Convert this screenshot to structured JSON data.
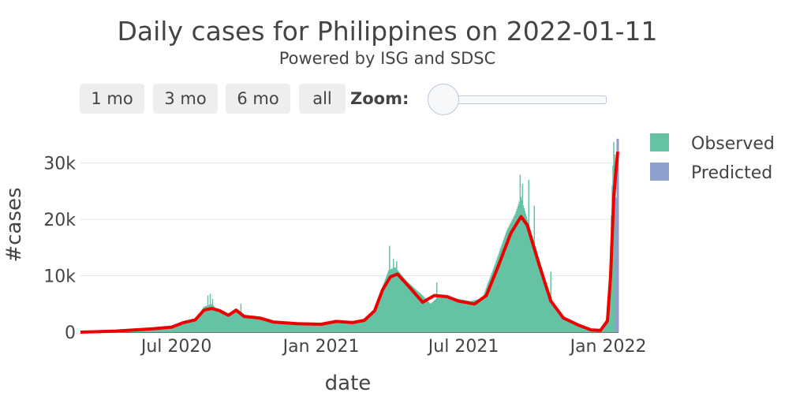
{
  "header": {
    "title": "Daily cases for Philippines on 2022-01-11",
    "subtitle": "Powered by ISG and SDSC"
  },
  "controls": {
    "buttons": [
      "1 mo",
      "3 mo",
      "6 mo",
      "all"
    ],
    "zoom_label": "Zoom:",
    "zoom_value": 0
  },
  "chart_data": {
    "type": "bar",
    "xlabel": "date",
    "ylabel": "#cases",
    "xlim": [
      "2020-03-01",
      "2022-01-14"
    ],
    "ylim": [
      0,
      34000
    ],
    "yticks": [
      0,
      10000,
      20000,
      30000
    ],
    "ytick_labels": [
      "0",
      "10k",
      "20k",
      "30k"
    ],
    "xticks": [
      "2020-07-01",
      "2021-01-01",
      "2021-07-01",
      "2022-01-01"
    ],
    "xtick_labels": [
      "Jul 2020",
      "Jan 2021",
      "Jul 2021",
      "Jan 2022"
    ],
    "grid": true,
    "legend": {
      "placement": "top-right",
      "entries": [
        "Observed",
        "Predicted"
      ]
    },
    "colors": {
      "observed": "#66c2a5",
      "predicted": "#8da0cb",
      "smooth": "#ee0000"
    },
    "observed_knots": [
      [
        "2020-03-01",
        0
      ],
      [
        "2020-03-20",
        100
      ],
      [
        "2020-04-10",
        250
      ],
      [
        "2020-05-01",
        300
      ],
      [
        "2020-06-01",
        500
      ],
      [
        "2020-06-20",
        700
      ],
      [
        "2020-07-05",
        1500
      ],
      [
        "2020-07-25",
        2000
      ],
      [
        "2020-08-05",
        4500
      ],
      [
        "2020-08-15",
        5000
      ],
      [
        "2020-08-25",
        3500
      ],
      [
        "2020-09-05",
        2800
      ],
      [
        "2020-09-15",
        4000
      ],
      [
        "2020-09-25",
        3000
      ],
      [
        "2020-10-15",
        2500
      ],
      [
        "2020-11-01",
        1800
      ],
      [
        "2020-11-20",
        1500
      ],
      [
        "2020-12-15",
        1400
      ],
      [
        "2021-01-05",
        1500
      ],
      [
        "2021-01-20",
        2000
      ],
      [
        "2021-02-10",
        1800
      ],
      [
        "2021-02-25",
        2200
      ],
      [
        "2021-03-10",
        4000
      ],
      [
        "2021-03-20",
        8000
      ],
      [
        "2021-03-28",
        11000
      ],
      [
        "2021-04-05",
        11500
      ],
      [
        "2021-04-20",
        9000
      ],
      [
        "2021-05-10",
        6500
      ],
      [
        "2021-05-20",
        5000
      ],
      [
        "2021-06-01",
        6500
      ],
      [
        "2021-06-20",
        6000
      ],
      [
        "2021-07-10",
        5500
      ],
      [
        "2021-07-25",
        6000
      ],
      [
        "2021-08-10",
        12000
      ],
      [
        "2021-08-25",
        18000
      ],
      [
        "2021-09-05",
        21000
      ],
      [
        "2021-09-12",
        24000
      ],
      [
        "2021-09-20",
        20000
      ],
      [
        "2021-10-05",
        13000
      ],
      [
        "2021-10-20",
        6000
      ],
      [
        "2021-11-05",
        2500
      ],
      [
        "2021-11-25",
        1000
      ],
      [
        "2021-12-10",
        500
      ],
      [
        "2021-12-25",
        300
      ],
      [
        "2021-12-31",
        3000
      ],
      [
        "2022-01-03",
        10000
      ],
      [
        "2022-01-06",
        26000
      ],
      [
        "2022-01-08",
        33000
      ],
      [
        "2022-01-10",
        30000
      ]
    ],
    "spikes": [
      [
        "2020-08-10",
        6500
      ],
      [
        "2020-08-13",
        6800
      ],
      [
        "2020-08-16",
        5900
      ],
      [
        "2020-09-21",
        5000
      ],
      [
        "2021-03-29",
        15300
      ],
      [
        "2021-04-03",
        13000
      ],
      [
        "2021-04-07",
        12600
      ],
      [
        "2021-05-28",
        8800
      ],
      [
        "2021-09-11",
        27900
      ],
      [
        "2021-09-14",
        26300
      ],
      [
        "2021-09-22",
        27000
      ],
      [
        "2021-09-29",
        22400
      ],
      [
        "2021-10-20",
        10700
      ],
      [
        "2022-01-08",
        33700
      ]
    ],
    "predicted": [
      [
        "2022-01-11",
        23800
      ],
      [
        "2022-01-12",
        23800
      ],
      [
        "2022-01-13",
        34300
      ]
    ],
    "smooth_knots": [
      [
        "2020-03-01",
        0
      ],
      [
        "2020-04-15",
        200
      ],
      [
        "2020-06-01",
        600
      ],
      [
        "2020-06-25",
        900
      ],
      [
        "2020-07-10",
        1700
      ],
      [
        "2020-07-25",
        2200
      ],
      [
        "2020-08-05",
        3900
      ],
      [
        "2020-08-15",
        4200
      ],
      [
        "2020-08-25",
        3800
      ],
      [
        "2020-09-05",
        3000
      ],
      [
        "2020-09-15",
        3900
      ],
      [
        "2020-09-25",
        2800
      ],
      [
        "2020-10-15",
        2500
      ],
      [
        "2020-11-01",
        1800
      ],
      [
        "2020-12-01",
        1500
      ],
      [
        "2021-01-01",
        1400
      ],
      [
        "2021-01-20",
        1900
      ],
      [
        "2021-02-10",
        1700
      ],
      [
        "2021-02-25",
        2100
      ],
      [
        "2021-03-10",
        3800
      ],
      [
        "2021-03-20",
        7500
      ],
      [
        "2021-03-30",
        9800
      ],
      [
        "2021-04-08",
        10300
      ],
      [
        "2021-04-20",
        8500
      ],
      [
        "2021-05-10",
        5300
      ],
      [
        "2021-05-25",
        6500
      ],
      [
        "2021-06-10",
        6300
      ],
      [
        "2021-06-25",
        5500
      ],
      [
        "2021-07-15",
        5000
      ],
      [
        "2021-07-30",
        6500
      ],
      [
        "2021-08-15",
        12000
      ],
      [
        "2021-08-30",
        17500
      ],
      [
        "2021-09-12",
        20500
      ],
      [
        "2021-09-20",
        19000
      ],
      [
        "2021-10-05",
        12000
      ],
      [
        "2021-10-20",
        5500
      ],
      [
        "2021-11-05",
        2500
      ],
      [
        "2021-11-25",
        1200
      ],
      [
        "2021-12-10",
        400
      ],
      [
        "2021-12-22",
        300
      ],
      [
        "2021-12-31",
        2000
      ],
      [
        "2022-01-04",
        10000
      ],
      [
        "2022-01-08",
        24000
      ],
      [
        "2022-01-11",
        29000
      ],
      [
        "2022-01-13",
        32000
      ]
    ]
  }
}
